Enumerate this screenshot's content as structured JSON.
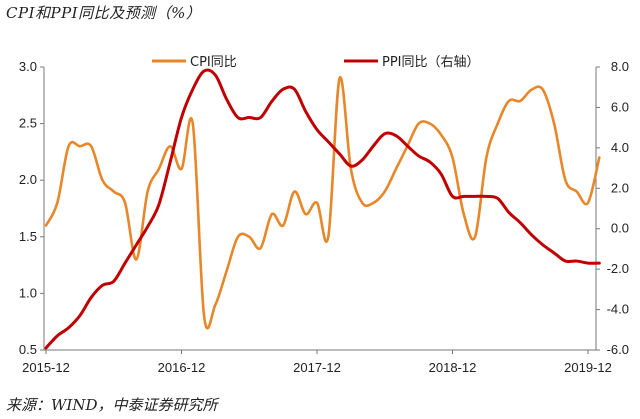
{
  "title": "CPI和PPI同比及预测（%）",
  "source": "来源：WIND，中泰证券研究所",
  "chart_data": {
    "type": "line",
    "title": "CPI和PPI同比及预测（%）",
    "x_ticks": [
      "2015-12",
      "2016-12",
      "2017-12",
      "2018-12",
      "2019-12"
    ],
    "left_axis": {
      "min": 0.5,
      "max": 3.0,
      "step": 0.5,
      "ticks": [
        "0.5",
        "1.0",
        "1.5",
        "2.0",
        "2.5",
        "3.0"
      ]
    },
    "right_axis": {
      "min": -6.0,
      "max": 8.0,
      "step": 2.0,
      "ticks": [
        "-6.0",
        "-4.0",
        "-2.0",
        "0.0",
        "2.0",
        "4.0",
        "6.0",
        "8.0"
      ]
    },
    "legend_placement": "top",
    "series": [
      {
        "name": "CPI同比",
        "axis": "left",
        "color": "#E8862A",
        "x": [
          "2015-12",
          "2016-01",
          "2016-02",
          "2016-03",
          "2016-04",
          "2016-05",
          "2016-06",
          "2016-07",
          "2016-08",
          "2016-09",
          "2016-10",
          "2016-11",
          "2016-12",
          "2017-01",
          "2017-02",
          "2017-03",
          "2017-04",
          "2017-05",
          "2017-06",
          "2017-07",
          "2017-08",
          "2017-09",
          "2017-10",
          "2017-11",
          "2017-12",
          "2018-01",
          "2018-02",
          "2018-03",
          "2018-04",
          "2018-05",
          "2018-06",
          "2018-07",
          "2018-08",
          "2018-09",
          "2018-10",
          "2018-11",
          "2018-12",
          "2019-01",
          "2019-02",
          "2019-03",
          "2019-04",
          "2019-05",
          "2019-06",
          "2019-07",
          "2019-08",
          "2019-09",
          "2019-10",
          "2019-11",
          "2019-12",
          "2020-01"
        ],
        "values": [
          1.6,
          1.8,
          2.3,
          2.3,
          2.3,
          2.0,
          1.9,
          1.8,
          1.3,
          1.9,
          2.1,
          2.3,
          2.1,
          2.5,
          0.8,
          0.9,
          1.2,
          1.5,
          1.5,
          1.4,
          1.7,
          1.6,
          1.9,
          1.7,
          1.8,
          1.5,
          2.9,
          2.1,
          1.8,
          1.8,
          1.9,
          2.1,
          2.3,
          2.5,
          2.5,
          2.4,
          2.2,
          1.7,
          1.5,
          2.2,
          2.5,
          2.7,
          2.7,
          2.8,
          2.8,
          2.5,
          2.0,
          1.9,
          1.8,
          2.2
        ],
        "values_note": ""
      },
      {
        "name": "PPI同比（右轴）",
        "axis": "right",
        "color": "#C00000",
        "x": [
          "2015-12",
          "2016-01",
          "2016-02",
          "2016-03",
          "2016-04",
          "2016-05",
          "2016-06",
          "2016-07",
          "2016-08",
          "2016-09",
          "2016-10",
          "2016-11",
          "2016-12",
          "2017-01",
          "2017-02",
          "2017-03",
          "2017-04",
          "2017-05",
          "2017-06",
          "2017-07",
          "2017-08",
          "2017-09",
          "2017-10",
          "2017-11",
          "2017-12",
          "2018-01",
          "2018-02",
          "2018-03",
          "2018-04",
          "2018-05",
          "2018-06",
          "2018-07",
          "2018-08",
          "2018-09",
          "2018-10",
          "2018-11",
          "2018-12",
          "2019-01",
          "2019-02",
          "2019-03",
          "2019-04",
          "2019-05",
          "2019-06",
          "2019-07",
          "2019-08",
          "2019-09",
          "2019-10",
          "2019-11",
          "2019-12",
          "2020-01"
        ],
        "values": [
          -5.9,
          -5.3,
          -4.9,
          -4.3,
          -3.4,
          -2.8,
          -2.6,
          -1.7,
          -0.8,
          0.1,
          1.2,
          3.3,
          5.5,
          6.9,
          7.8,
          7.6,
          6.4,
          5.5,
          5.5,
          5.5,
          6.3,
          6.9,
          6.9,
          5.8,
          4.9,
          4.3,
          3.7,
          3.1,
          3.4,
          4.1,
          4.7,
          4.6,
          4.1,
          3.6,
          3.3,
          2.7,
          1.6,
          1.6,
          1.6,
          1.6,
          1.5,
          0.8,
          0.3,
          -0.3,
          -0.8,
          -1.2,
          -1.6,
          -1.6,
          -1.7,
          -1.7
        ]
      }
    ]
  }
}
